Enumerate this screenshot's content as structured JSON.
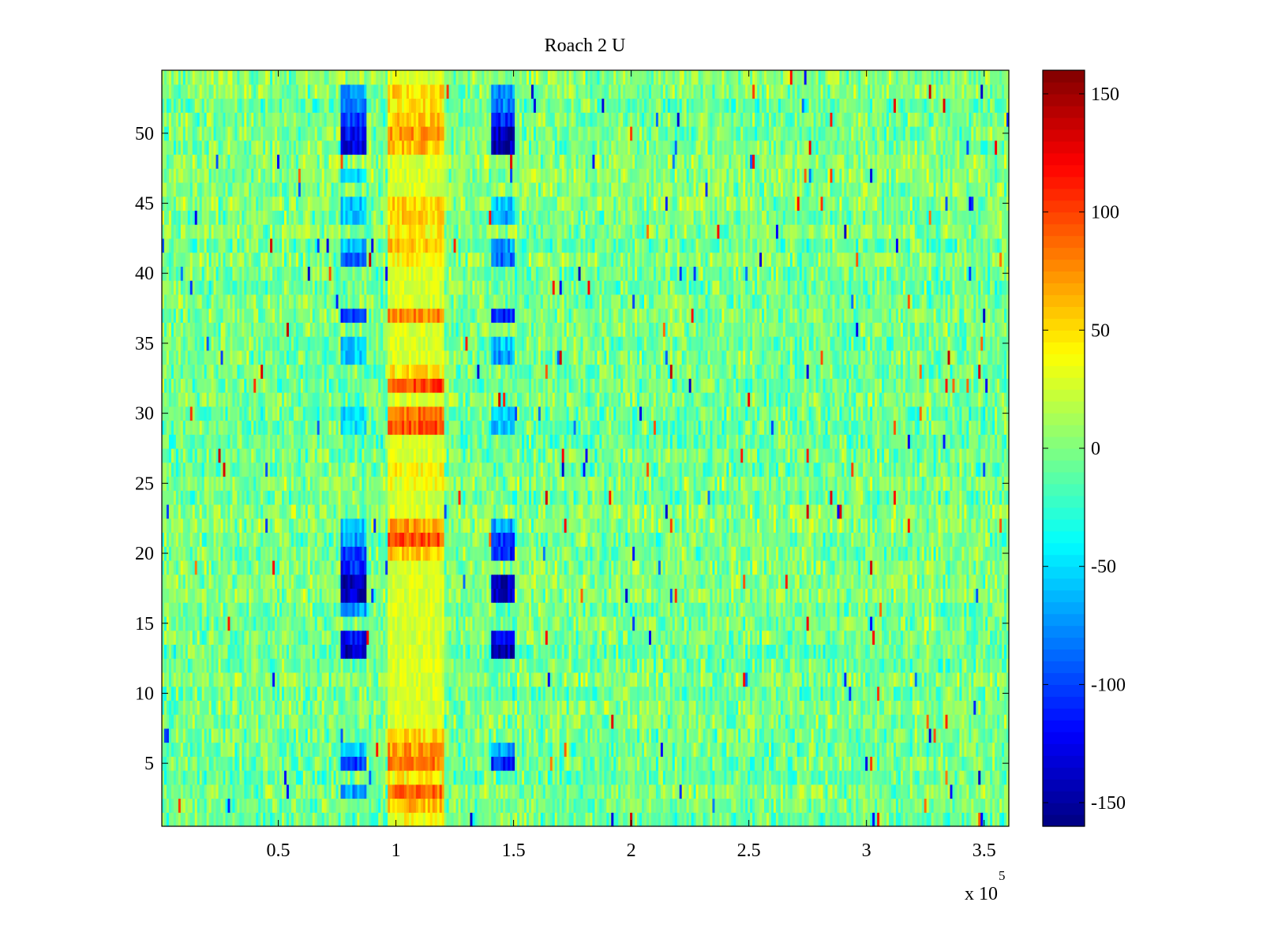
{
  "chart_data": {
    "type": "heatmap",
    "title": "Roach 2 U",
    "xlabel": "",
    "ylabel": "",
    "x_multiplier_label": {
      "base": "x 10",
      "exponent": "5"
    },
    "xlim": [
      0.005,
      3.605
    ],
    "ylim": [
      0.5,
      54.5
    ],
    "x_units_scale": 100000,
    "x_ticks": [
      0.5,
      1,
      1.5,
      2,
      2.5,
      3,
      3.5
    ],
    "x_tick_labels": [
      "0.5",
      "1",
      "1.5",
      "2",
      "2.5",
      "3",
      "3.5"
    ],
    "y_ticks": [
      5,
      10,
      15,
      20,
      25,
      30,
      35,
      40,
      45,
      50
    ],
    "y_tick_labels": [
      "5",
      "10",
      "15",
      "20",
      "25",
      "30",
      "35",
      "40",
      "45",
      "50"
    ],
    "rows": 54,
    "colormap": "jet",
    "colorbar": {
      "clim": [
        -160,
        160
      ],
      "ticks": [
        -150,
        -100,
        -50,
        0,
        50,
        100,
        150
      ],
      "tick_labels": [
        "-150",
        "-100",
        "-50",
        "0",
        "50",
        "100",
        "150"
      ]
    },
    "background_value_range": [
      -30,
      25
    ],
    "features": [
      {
        "kind": "negative-band",
        "x_range": [
          0.77,
          0.87
        ],
        "row_values": {
          "3": -70,
          "5": -100,
          "6": -60,
          "13": -140,
          "14": -120,
          "16": -70,
          "17": -140,
          "18": -145,
          "19": -110,
          "20": -100,
          "21": -70,
          "22": -60,
          "29": -45,
          "30": -55,
          "34": -55,
          "35": -55,
          "37": -100,
          "41": -85,
          "42": -60,
          "44": -60,
          "45": -55,
          "47": -60,
          "49": -130,
          "50": -120,
          "51": -100,
          "52": -80,
          "53": -70
        }
      },
      {
        "kind": "negative-band",
        "x_range": [
          1.41,
          1.5
        ],
        "row_values": {
          "5": -110,
          "6": -70,
          "13": -145,
          "14": -130,
          "17": -135,
          "18": -140,
          "20": -110,
          "21": -100,
          "22": -70,
          "29": -60,
          "30": -60,
          "34": -70,
          "35": -55,
          "37": -110,
          "41": -85,
          "42": -70,
          "44": -70,
          "45": -55,
          "49": -145,
          "50": -140,
          "51": -110,
          "52": -80,
          "53": -75
        }
      },
      {
        "kind": "positive-band",
        "x_range": [
          0.97,
          1.2
        ],
        "row_values": {
          "1": 40,
          "2": 60,
          "3": 85,
          "4": 40,
          "5": 80,
          "6": 70,
          "7": 50,
          "20": 55,
          "21": 95,
          "22": 70,
          "25": 35,
          "26": 40,
          "29": 95,
          "30": 85,
          "32": 100,
          "33": 45,
          "37": 75,
          "41": 45,
          "42": 55,
          "43": 40,
          "44": 50,
          "45": 55,
          "49": 60,
          "50": 70,
          "51": 55,
          "52": 45,
          "53": 50
        }
      }
    ]
  }
}
